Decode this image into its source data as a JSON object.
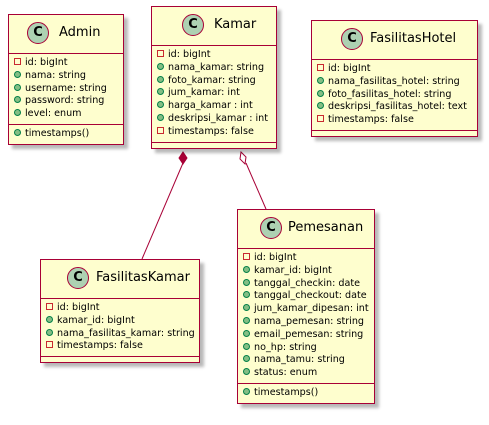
{
  "classes": {
    "admin": {
      "name": "Admin",
      "badge": "C",
      "fields": [
        {
          "v": "private",
          "text": "id: bigInt"
        },
        {
          "v": "public",
          "text": "nama: string"
        },
        {
          "v": "public",
          "text": "username: string"
        },
        {
          "v": "public",
          "text": "password: string"
        },
        {
          "v": "public",
          "text": "level: enum"
        }
      ],
      "methods": [
        {
          "v": "public",
          "text": "timestamps()"
        }
      ]
    },
    "kamar": {
      "name": "Kamar",
      "badge": "C",
      "fields": [
        {
          "v": "private",
          "text": "id: bigInt"
        },
        {
          "v": "public",
          "text": "nama_kamar: string"
        },
        {
          "v": "public",
          "text": "foto_kamar: string"
        },
        {
          "v": "public",
          "text": "jum_kamar: int"
        },
        {
          "v": "public",
          "text": "harga_kamar : int"
        },
        {
          "v": "public",
          "text": "deskripsi_kamar : int"
        },
        {
          "v": "private",
          "text": "timestamps: false"
        }
      ],
      "methods": []
    },
    "fasilitas_hotel": {
      "name": "FasilitasHotel",
      "badge": "C",
      "fields": [
        {
          "v": "private",
          "text": "id: bigInt"
        },
        {
          "v": "public",
          "text": "nama_fasilitas_hotel: string"
        },
        {
          "v": "public",
          "text": "foto_fasilitas_hotel: string"
        },
        {
          "v": "public",
          "text": "deskripsi_fasilitas_hotel: text"
        },
        {
          "v": "private",
          "text": "timestamps: false"
        }
      ],
      "methods": []
    },
    "fasilitas_kamar": {
      "name": "FasilitasKamar",
      "badge": "C",
      "fields": [
        {
          "v": "private",
          "text": "id: bigInt"
        },
        {
          "v": "public",
          "text": "kamar_id: bigInt"
        },
        {
          "v": "public",
          "text": "nama_fasilitas_kamar: string"
        },
        {
          "v": "private",
          "text": "timestamps: false"
        }
      ],
      "methods": []
    },
    "pemesanan": {
      "name": "Pemesanan",
      "badge": "C",
      "fields": [
        {
          "v": "private",
          "text": "id: bigInt"
        },
        {
          "v": "public",
          "text": "kamar_id: bigInt"
        },
        {
          "v": "public",
          "text": "tanggal_checkin: date"
        },
        {
          "v": "public",
          "text": "tanggal_checkout: date"
        },
        {
          "v": "public",
          "text": "jum_kamar_dipesan: int"
        },
        {
          "v": "public",
          "text": "nama_pemesan: string"
        },
        {
          "v": "public",
          "text": "email_pemesan: string"
        },
        {
          "v": "public",
          "text": "no_hp: string"
        },
        {
          "v": "public",
          "text": "nama_tamu: string"
        },
        {
          "v": "public",
          "text": "status: enum"
        }
      ],
      "methods": [
        {
          "v": "public",
          "text": "timestamps()"
        }
      ]
    }
  },
  "relations": [
    {
      "from": "kamar",
      "to": "fasilitas_kamar",
      "type": "composition"
    },
    {
      "from": "kamar",
      "to": "pemesanan",
      "type": "aggregation"
    }
  ],
  "colors": {
    "class_fill": "#fefece",
    "class_border": "#a80036",
    "badge_fill": "#add1b2",
    "private_marker": "#c82930",
    "public_marker": "#84be84",
    "edge": "#a80036"
  }
}
